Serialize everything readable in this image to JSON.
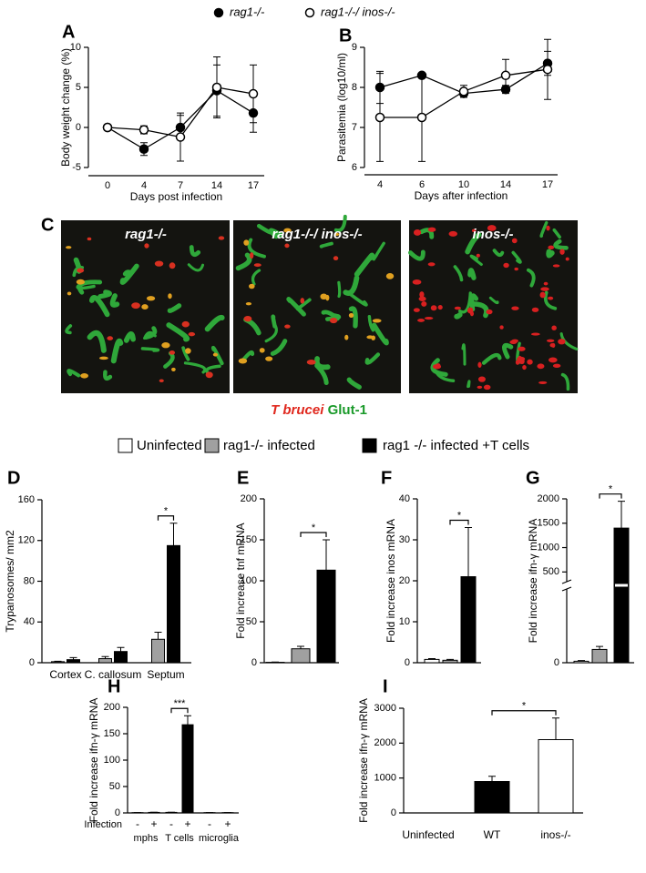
{
  "legend_top_title": null,
  "panel_c": {
    "panel": "C",
    "images": [
      "rag1-/-",
      "rag1-/-/ inos-/-",
      "inos-/-"
    ],
    "caption": [
      "T brucei",
      "Glut-1"
    ]
  },
  "bar_legend": {
    "series": [
      {
        "name": "Uninfected",
        "color": "#ffffff"
      },
      {
        "name": "rag1-/- infected",
        "color": "#a0a0a0"
      },
      {
        "name": "rag1 -/- infected +T cells",
        "color": "#000000"
      }
    ]
  },
  "chart_data": [
    {
      "type": "line",
      "panel": "A",
      "y_label": "Body weight change (%)",
      "x_label": "Days post infection",
      "categories": [
        "0",
        "4",
        "7",
        "14",
        "17"
      ],
      "ylim": [
        -5,
        10
      ],
      "yticks": [
        -5,
        0,
        5,
        10
      ],
      "series": [
        {
          "name": "rag1-/-",
          "color": "#000000",
          "marker": "filled",
          "values": [
            0,
            -2.7,
            0,
            4.6,
            1.8
          ],
          "errors": [
            0,
            0.8,
            1.5,
            3.2,
            2.4
          ]
        },
        {
          "name": "rag1-/-/ inos-/-",
          "color": "#000000",
          "marker": "open",
          "values": [
            0,
            -0.3,
            -1.2,
            5.0,
            4.2
          ],
          "errors": [
            0,
            0.5,
            3.0,
            3.8,
            3.6
          ]
        }
      ]
    },
    {
      "type": "line",
      "panel": "B",
      "y_label": "Parasitemia (log10/ml)",
      "x_label": "Days after infection",
      "categories": [
        "4",
        "6",
        "10",
        "14",
        "17"
      ],
      "ylim": [
        6,
        9
      ],
      "yticks": [
        6,
        7,
        8,
        9
      ],
      "series": [
        {
          "color": "#000000",
          "marker": "filled",
          "values": [
            8.0,
            8.3,
            7.85,
            7.95,
            8.6
          ],
          "errors": [
            0.4,
            0.05,
            0.1,
            0.1,
            0.3
          ]
        },
        {
          "color": "#000000",
          "marker": "open",
          "values": [
            7.25,
            7.25,
            7.9,
            8.3,
            8.45
          ],
          "errors": [
            1.1,
            1.1,
            0.15,
            0.4,
            0.75
          ]
        }
      ]
    },
    {
      "type": "grouped_bar",
      "panel": "D",
      "y_label": "Trypanosomes/ mm2",
      "categories": [
        "Cortex",
        "C. callosum",
        "Septum"
      ],
      "ylim": [
        0,
        160
      ],
      "yticks": [
        0,
        40,
        80,
        120,
        160
      ],
      "series": [
        {
          "color": "#a0a0a0",
          "values": [
            1,
            4,
            23
          ],
          "errors": [
            0.5,
            2,
            7
          ]
        },
        {
          "color": "#000000",
          "values": [
            3,
            11,
            115
          ],
          "errors": [
            2,
            4,
            22
          ]
        }
      ],
      "annotation": "*"
    },
    {
      "type": "bar",
      "panel": "E",
      "y_label": "Fold increase tnf mRNA",
      "categories": [
        null,
        null,
        null
      ],
      "values": [
        0.5,
        17,
        113
      ],
      "errors": [
        0.3,
        3,
        37
      ],
      "colors": [
        "#ffffff",
        "#a0a0a0",
        "#000000"
      ],
      "ylim": [
        0,
        200
      ],
      "yticks": [
        0,
        50,
        100,
        150,
        200
      ],
      "annotation": "*"
    },
    {
      "type": "bar",
      "panel": "F",
      "y_label": "Fold increase inos mRNA",
      "categories": [
        null,
        null,
        null
      ],
      "values": [
        0.8,
        0.6,
        21
      ],
      "errors": [
        0.2,
        0.2,
        12
      ],
      "colors": [
        "#ffffff",
        "#a0a0a0",
        "#000000"
      ],
      "ylim": [
        0,
        40
      ],
      "yticks": [
        0,
        10,
        20,
        30,
        40
      ],
      "annotation": "*"
    },
    {
      "type": "bar",
      "panel": "G",
      "y_label": "Fold increase ifn-γ mRNA",
      "categories": [
        null,
        null,
        null
      ],
      "values": [
        1,
        9,
        1400
      ],
      "errors": [
        0.5,
        2,
        550
      ],
      "colors": [
        "#ffffff",
        "#a0a0a0",
        "#000000"
      ],
      "ylim": [
        0,
        2000
      ],
      "yticks": [
        0,
        500,
        1000,
        1500,
        2000
      ],
      "ybreak": [
        50,
        300
      ],
      "annotation": "*"
    },
    {
      "type": "bar",
      "panel": "H",
      "y_label": "Fold increase ifn-γ mRNA",
      "x_row_label": "Infection",
      "categories": [
        "-",
        "+",
        "-",
        "+",
        "-",
        "+"
      ],
      "groups": [
        "mphs",
        "T cells",
        "microglia"
      ],
      "values": [
        0.5,
        1,
        1,
        167,
        0.5,
        0.5
      ],
      "errors": [
        0.2,
        0.3,
        0.3,
        17,
        0.2,
        0.2
      ],
      "colors": [
        "#000000",
        "#000000",
        "#000000",
        "#000000",
        "#000000",
        "#000000"
      ],
      "ylim": [
        0,
        200
      ],
      "yticks": [
        0,
        50,
        100,
        150,
        200
      ],
      "annotation": "***"
    },
    {
      "type": "bar",
      "panel": "I",
      "y_label": "Fold increase ifn-γ mRNA",
      "categories": [
        "Uninfected",
        "WT",
        "inos-/-"
      ],
      "values": [
        0,
        900,
        2100
      ],
      "errors": [
        0,
        150,
        620
      ],
      "colors": [
        "#ffffff",
        "#000000",
        "#ffffff"
      ],
      "ylim": [
        0,
        3000
      ],
      "yticks": [
        0,
        1000,
        2000,
        3000
      ],
      "annotation": "*"
    }
  ]
}
